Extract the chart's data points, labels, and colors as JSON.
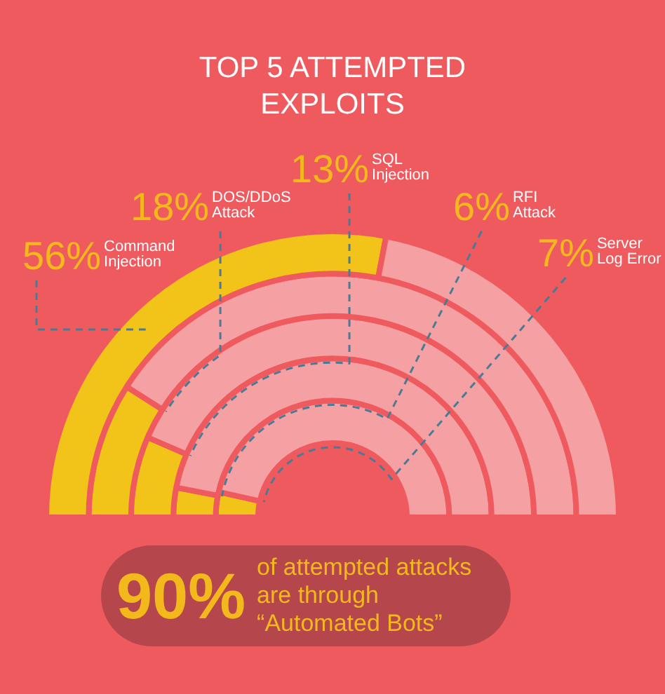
{
  "chart_data": {
    "type": "other",
    "title": "TOP 5 ATTEMPTED EXPLOITS",
    "categories": [
      "Command Injection",
      "DOS/DDoS Attack",
      "SQL Injection",
      "RFI Attack",
      "Server Log Error"
    ],
    "values": [
      56,
      18,
      13,
      6,
      7
    ],
    "value_labels": [
      "56%",
      "18%",
      "13%",
      "6%",
      "7%"
    ],
    "color": "#f2c318",
    "annotations": [
      "90% of attempted attacks are through “Automated Bots”"
    ]
  }
}
